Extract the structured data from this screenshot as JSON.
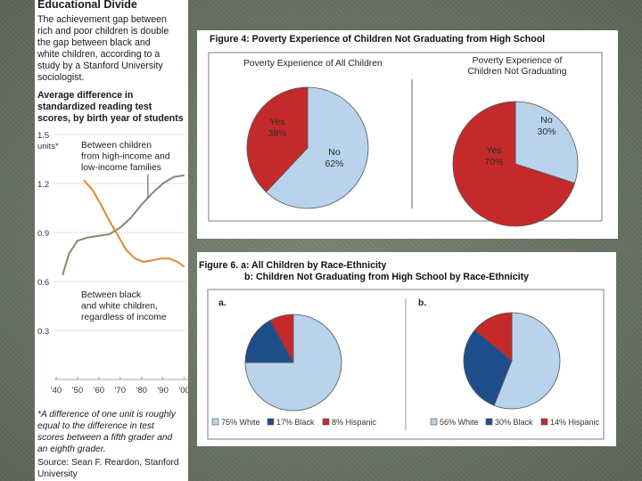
{
  "left": {
    "heading": "Educational Divide",
    "intro": [
      "The achievement gap between",
      "rich and poor children is double",
      "the gap between black and",
      "white children, according to a",
      "study by a Stanford University",
      "sociologist."
    ],
    "subhead": [
      "Average difference in",
      "standardized reading test",
      "scores, by birth year of students"
    ],
    "footnote": [
      "*A difference of one unit is roughly",
      "equal to the difference in test",
      "scores between a fifth grader and",
      "an eighth grader."
    ],
    "source": [
      "Source: Sean F. Reardon, Stanford",
      "University"
    ]
  },
  "chart_data": [
    {
      "type": "line",
      "title": "Average difference in standardized reading test scores, by birth year of students",
      "ylabel": "units*",
      "y_ticks": [
        "1.5",
        "1.2",
        "0.9",
        "0.6",
        "0.3"
      ],
      "x_ticks": [
        "'40",
        "'50",
        "'60",
        "'70",
        "'80",
        "'90",
        "'00"
      ],
      "ylim": [
        0.0,
        1.5
      ],
      "xlim": [
        1940,
        2001
      ],
      "series": [
        {
          "name": "Between children from high-income and low-income families",
          "label_lines": [
            "Between children",
            "from high-income and",
            "low-income families"
          ],
          "color": "#7f8c74",
          "x": [
            1943,
            1946,
            1950,
            1955,
            1960,
            1965,
            1970,
            1975,
            1980,
            1985,
            1990,
            1995,
            2000
          ],
          "y": [
            0.64,
            0.77,
            0.85,
            0.87,
            0.88,
            0.89,
            0.93,
            0.99,
            1.07,
            1.14,
            1.2,
            1.24,
            1.25
          ]
        },
        {
          "name": "Between black and white children, regardless of income",
          "label_lines": [
            "Between black",
            "and white children,",
            "regardless of income"
          ],
          "color": "#e0882c",
          "x": [
            1953,
            1957,
            1961,
            1965,
            1969,
            1973,
            1977,
            1981,
            1985,
            1989,
            1993,
            1997,
            2000
          ],
          "y": [
            1.22,
            1.16,
            1.07,
            0.97,
            0.88,
            0.79,
            0.74,
            0.72,
            0.73,
            0.74,
            0.74,
            0.72,
            0.69
          ]
        }
      ]
    },
    {
      "type": "pie",
      "title": "Poverty Experience of All Children",
      "slices": [
        {
          "label": "No",
          "value": 62,
          "text": "62%",
          "color": "#b8d3eb"
        },
        {
          "label": "Yes",
          "value": 38,
          "text": "38%",
          "color": "#c42a2a"
        }
      ]
    },
    {
      "type": "pie",
      "title": "Poverty Experience of Children Not Graduating",
      "title_lines": [
        "Poverty Experience of",
        "Children Not Graduating"
      ],
      "slices": [
        {
          "label": "No",
          "value": 30,
          "text": "30%",
          "color": "#b8d3eb"
        },
        {
          "label": "Yes",
          "value": 70,
          "text": "70%",
          "color": "#c42a2a"
        }
      ]
    },
    {
      "type": "pie",
      "title": "a.",
      "slices": [
        {
          "label": "White",
          "value": 75,
          "color": "#b8d3eb"
        },
        {
          "label": "Black",
          "value": 17,
          "color": "#1f4e8c"
        },
        {
          "label": "Hispanic",
          "value": 8,
          "color": "#c42a2a"
        }
      ],
      "legend": [
        "75% White",
        "17% Black",
        "8% Hispanic"
      ]
    },
    {
      "type": "pie",
      "title": "b.",
      "slices": [
        {
          "label": "White",
          "value": 56,
          "color": "#b8d3eb"
        },
        {
          "label": "Black",
          "value": 30,
          "color": "#1f4e8c"
        },
        {
          "label": "Hispanic",
          "value": 14,
          "color": "#c42a2a"
        }
      ],
      "legend": [
        "56% White",
        "30% Black",
        "14% Hispanic"
      ]
    }
  ],
  "fig4": {
    "title": "Figure 4: Poverty Experience of Children Not Graduating from High School"
  },
  "fig6": {
    "title_line1": "Figure 6. a: All Children by Race-Ethnicity",
    "title_line2": "b: Children Not Graduating from High School by Race-Ethnicity"
  }
}
